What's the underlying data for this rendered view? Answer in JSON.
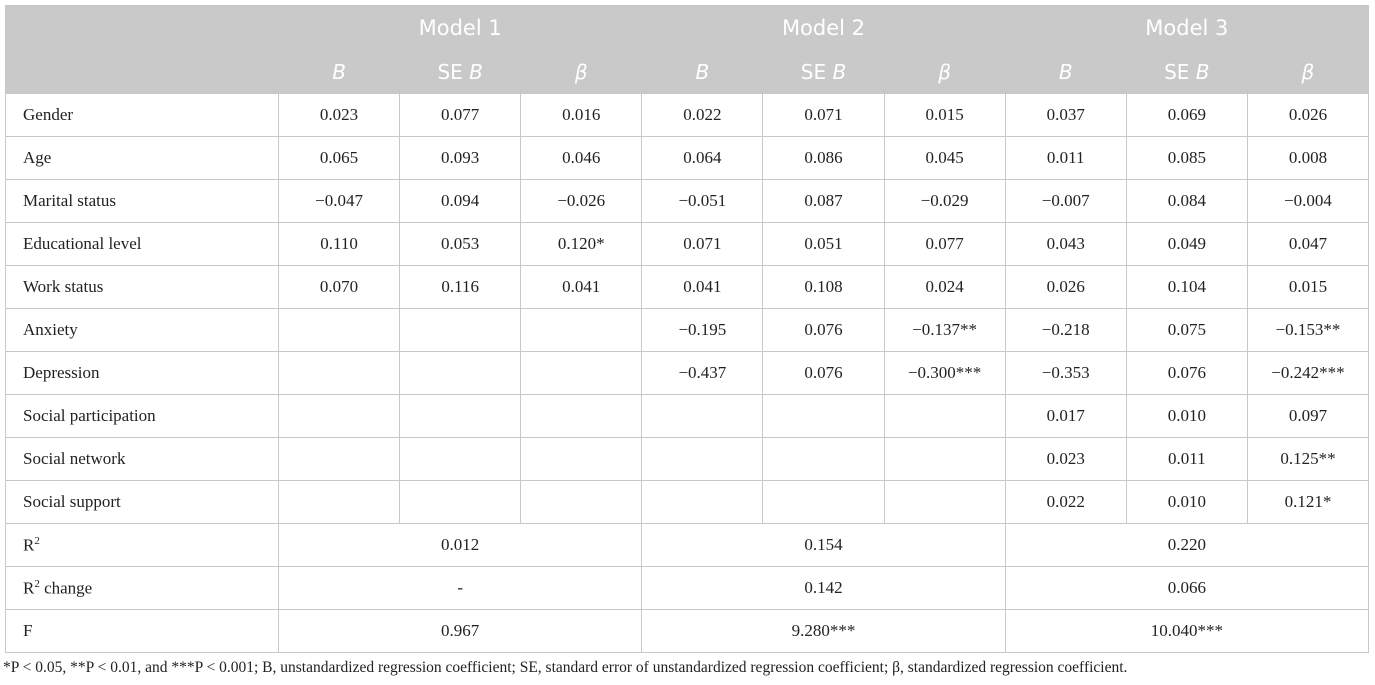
{
  "header": {
    "groups": [
      "Model 1",
      "Model 2",
      "Model 3"
    ],
    "subheaders": [
      {
        "symbol": "B"
      },
      {
        "prefix": "SE",
        "symbol": "B"
      },
      {
        "symbol": "β"
      },
      {
        "symbol": "B"
      },
      {
        "prefix": "SE",
        "symbol": "B"
      },
      {
        "symbol": "β"
      },
      {
        "symbol": "B"
      },
      {
        "prefix": "SE",
        "symbol": "B"
      },
      {
        "symbol": "β"
      }
    ]
  },
  "rows": [
    {
      "label": "Gender",
      "cells": [
        "0.023",
        "0.077",
        "0.016",
        "0.022",
        "0.071",
        "0.015",
        "0.037",
        "0.069",
        "0.026"
      ]
    },
    {
      "label": "Age",
      "cells": [
        "0.065",
        "0.093",
        "0.046",
        "0.064",
        "0.086",
        "0.045",
        "0.011",
        "0.085",
        "0.008"
      ]
    },
    {
      "label": "Marital status",
      "cells": [
        "−0.047",
        "0.094",
        "−0.026",
        "−0.051",
        "0.087",
        "−0.029",
        "−0.007",
        "0.084",
        "−0.004"
      ]
    },
    {
      "label": "Educational level",
      "cells": [
        "0.110",
        "0.053",
        "0.120*",
        "0.071",
        "0.051",
        "0.077",
        "0.043",
        "0.049",
        "0.047"
      ]
    },
    {
      "label": "Work status",
      "cells": [
        "0.070",
        "0.116",
        "0.041",
        "0.041",
        "0.108",
        "0.024",
        "0.026",
        "0.104",
        "0.015"
      ]
    },
    {
      "label": "Anxiety",
      "cells": [
        null,
        null,
        null,
        "−0.195",
        "0.076",
        "−0.137**",
        "−0.218",
        "0.075",
        "−0.153**"
      ]
    },
    {
      "label": "Depression",
      "cells": [
        null,
        null,
        null,
        "−0.437",
        "0.076",
        "−0.300***",
        "−0.353",
        "0.076",
        "−0.242***"
      ]
    },
    {
      "label": "Social participation",
      "cells": [
        null,
        null,
        null,
        null,
        null,
        null,
        "0.017",
        "0.010",
        "0.097"
      ]
    },
    {
      "label": "Social network",
      "cells": [
        null,
        null,
        null,
        null,
        null,
        null,
        "0.023",
        "0.011",
        "0.125**"
      ]
    },
    {
      "label": "Social support",
      "cells": [
        null,
        null,
        null,
        null,
        null,
        null,
        "0.022",
        "0.010",
        "0.121*"
      ]
    }
  ],
  "summary": [
    {
      "label": "R",
      "sup": "2",
      "values": [
        "0.012",
        "0.154",
        "0.220"
      ]
    },
    {
      "label": "R",
      "sup": "2",
      "suffix": "change",
      "values": [
        "-",
        "0.142",
        "0.066"
      ]
    },
    {
      "label": "F",
      "values": [
        "0.967",
        "9.280***",
        "10.040***"
      ]
    }
  ],
  "footnote": "*P < 0.05, **P < 0.01, and ***P < 0.001; B, unstandardized regression coefficient; SE, standard error of unstandardized regression coefficient; β, standardized regression coefficient."
}
